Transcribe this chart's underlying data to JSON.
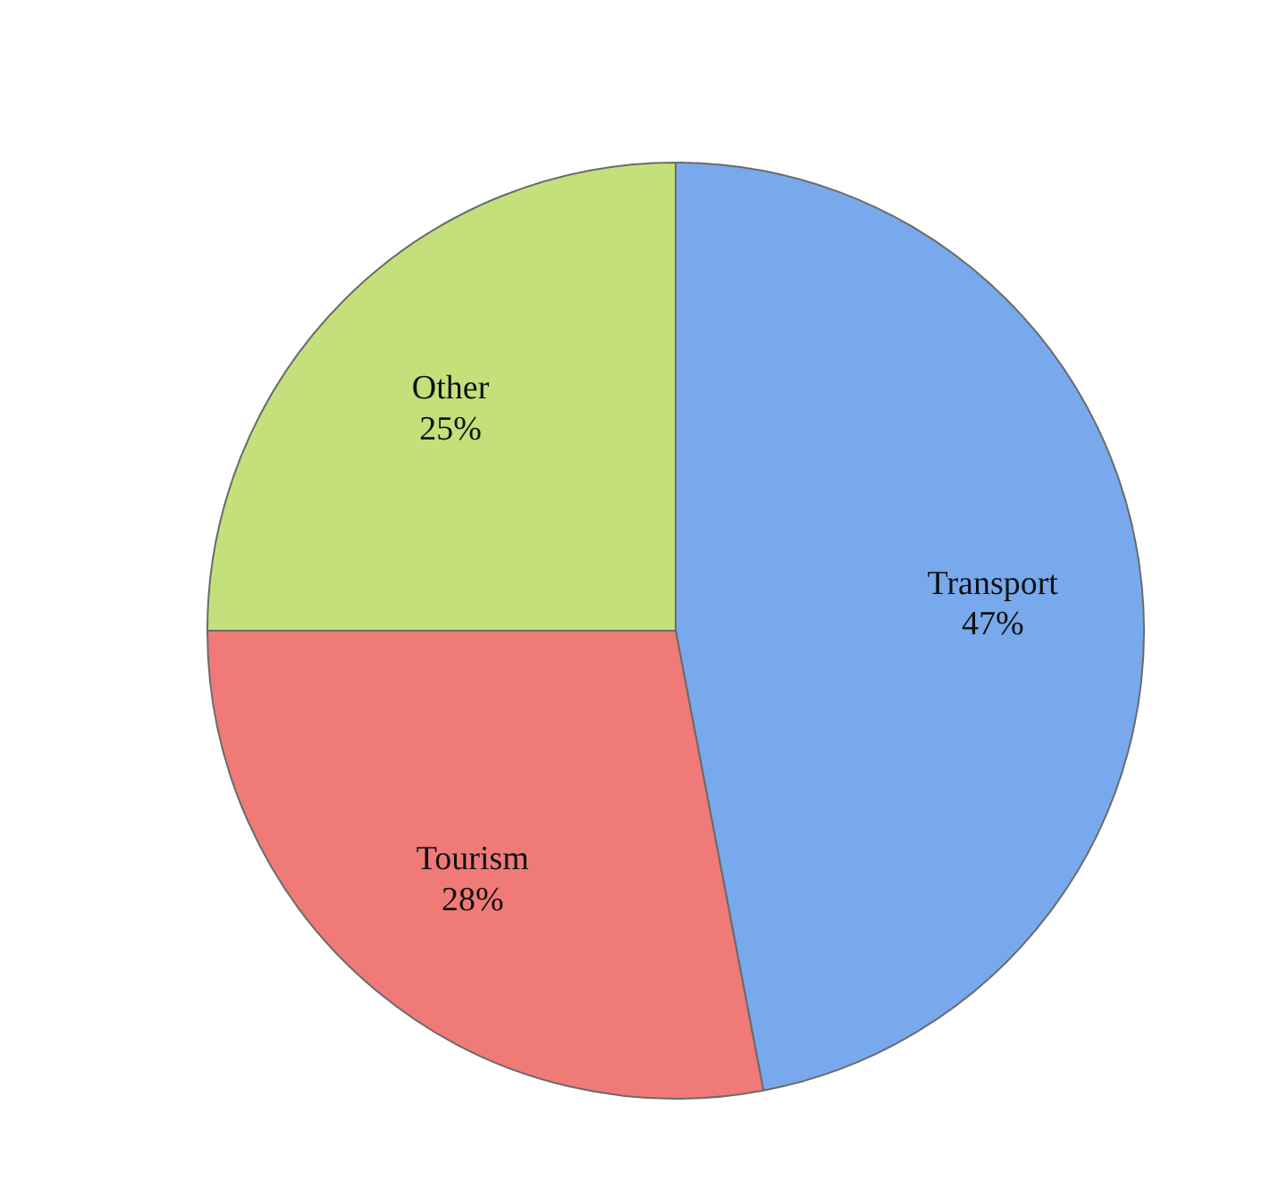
{
  "chart_data": {
    "type": "pie",
    "categories": [
      "Transport",
      "Tourism",
      "Other"
    ],
    "values": [
      47,
      28,
      25
    ],
    "colors": [
      "#78a9ec",
      "#f07a78",
      "#c4e07a"
    ],
    "value_labels": [
      "47%",
      "28%",
      "25%"
    ]
  }
}
